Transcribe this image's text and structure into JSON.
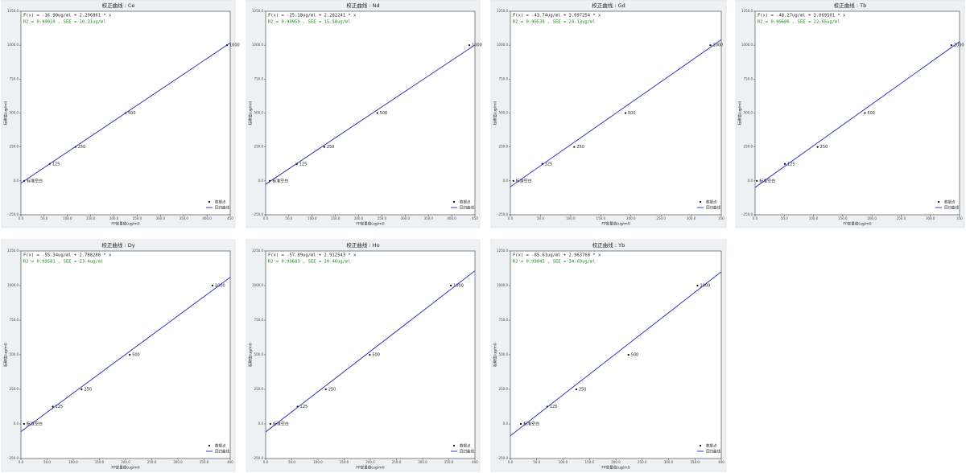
{
  "chart_data": [
    {
      "type": "scatter",
      "title": "校正曲线 : Ce",
      "equation": "F(x) = -16.90ug/ml + 2.296861 * x",
      "stats": "R2 = 0.99910 , SEE = 10.31ug/ml",
      "x_label": "FP定量值(ug/ml)",
      "y_label": "标称值(ug/ml)",
      "xlim": [
        0,
        450
      ],
      "ylim": [
        -250,
        1250
      ],
      "xticks": [
        {
          "value": 0,
          "label": "0.0"
        },
        {
          "value": 50,
          "label": "50.0"
        },
        {
          "value": 100,
          "label": "100.0"
        },
        {
          "value": 150,
          "label": "150.0"
        },
        {
          "value": 200,
          "label": "200.0"
        },
        {
          "value": 250,
          "label": "250.0"
        },
        {
          "value": 300,
          "label": "300.0"
        },
        {
          "value": 350,
          "label": "350.0"
        },
        {
          "value": 400,
          "label": "400.0"
        },
        {
          "value": 450,
          "label": "450"
        }
      ],
      "yticks": [
        {
          "value": -250,
          "label": "-250.0"
        },
        {
          "value": 0,
          "label": "0.0"
        },
        {
          "value": 250,
          "label": "250.0"
        },
        {
          "value": 500,
          "label": "500.0"
        },
        {
          "value": 750,
          "label": "750.0"
        },
        {
          "value": 1000,
          "label": "1000.0"
        },
        {
          "value": 1250,
          "label": "1250.0"
        }
      ],
      "series": [
        {
          "name": "数据点",
          "color": "#000000",
          "x": [
            7,
            62,
            117,
            225,
            443
          ],
          "values": [
            0,
            125,
            250,
            500,
            1000
          ],
          "labels": [
            "标准空白",
            "125",
            "250",
            "500",
            "1000"
          ]
        },
        {
          "name": "回归曲线",
          "color": "#2222b8",
          "x": [
            0,
            450
          ],
          "values": [
            -16.9,
            1016.7
          ]
        }
      ]
    },
    {
      "type": "scatter",
      "title": "校正曲线 : Nd",
      "equation": "F(x) = -25.18ug/ml + 2.282241 * x",
      "stats": "R2 = 0.99959 , SEE = 15.58ug/ml",
      "x_label": "FP定量值(ug/ml)",
      "y_label": "标称值(ug/ml)",
      "xlim": [
        0,
        450
      ],
      "ylim": [
        -250,
        1250
      ],
      "xticks": [
        {
          "value": 0,
          "label": "0.0"
        },
        {
          "value": 50,
          "label": "50.0"
        },
        {
          "value": 100,
          "label": "100.0"
        },
        {
          "value": 150,
          "label": "150.0"
        },
        {
          "value": 200,
          "label": "200.0"
        },
        {
          "value": 250,
          "label": "250.0"
        },
        {
          "value": 300,
          "label": "300.0"
        },
        {
          "value": 350,
          "label": "350.0"
        },
        {
          "value": 400,
          "label": "400.0"
        },
        {
          "value": 450,
          "label": "450"
        }
      ],
      "yticks": [
        {
          "value": -250,
          "label": "-250.0"
        },
        {
          "value": 0,
          "label": "0.0"
        },
        {
          "value": 250,
          "label": "250.0"
        },
        {
          "value": 500,
          "label": "500.0"
        },
        {
          "value": 750,
          "label": "750.0"
        },
        {
          "value": 1000,
          "label": "1000.0"
        },
        {
          "value": 1250,
          "label": "1250.0"
        }
      ],
      "series": [
        {
          "name": "数据点",
          "color": "#000000",
          "x": [
            9,
            67,
            126,
            240,
            438
          ],
          "values": [
            0,
            125,
            250,
            500,
            1000
          ],
          "labels": [
            "标准空白",
            "125",
            "250",
            "500",
            "1000"
          ]
        },
        {
          "name": "回归曲线",
          "color": "#2222b8",
          "x": [
            0,
            450
          ],
          "values": [
            -25.18,
            1001.8
          ]
        }
      ]
    },
    {
      "type": "scatter",
      "title": "校正曲线 : Gd",
      "equation": "F(x) = -43.74ug/ml + 3.097254 * x",
      "stats": "R2 = 0.99538 , SEE = 24.13ug/ml",
      "x_label": "FP定量值(ug/ml)",
      "y_label": "标称值(ug/ml)",
      "xlim": [
        0,
        350
      ],
      "ylim": [
        -250,
        1250
      ],
      "xticks": [
        {
          "value": 0,
          "label": "0.0"
        },
        {
          "value": 50,
          "label": "50.0"
        },
        {
          "value": 100,
          "label": "100.0"
        },
        {
          "value": 150,
          "label": "150.0"
        },
        {
          "value": 200,
          "label": "200.0"
        },
        {
          "value": 250,
          "label": "250.0"
        },
        {
          "value": 300,
          "label": "300.0"
        },
        {
          "value": 350,
          "label": "350"
        }
      ],
      "yticks": [
        {
          "value": -250,
          "label": "-250.0"
        },
        {
          "value": 0,
          "label": "0.0"
        },
        {
          "value": 250,
          "label": "250.0"
        },
        {
          "value": 500,
          "label": "500.0"
        },
        {
          "value": 750,
          "label": "750.0"
        },
        {
          "value": 1000,
          "label": "1000.0"
        },
        {
          "value": 1250,
          "label": "1250.0"
        }
      ],
      "series": [
        {
          "name": "数据点",
          "color": "#000000",
          "x": [
            5,
            53,
            106,
            191,
            332
          ],
          "values": [
            0,
            125,
            250,
            500,
            1000
          ],
          "labels": [
            "标准空白",
            "125",
            "250",
            "500",
            "1000"
          ]
        },
        {
          "name": "回归曲线",
          "color": "#2222b8",
          "x": [
            0,
            350
          ],
          "values": [
            -43.74,
            1040.3
          ]
        }
      ]
    },
    {
      "type": "scatter",
      "title": "校正曲线 : Tb",
      "equation": "F(x) = -48.27ug/ml + 3.069501 * x",
      "stats": "R2 = 0.99606 , SEE = 22.65ug/ml",
      "x_label": "FP定量值(ug/ml)",
      "y_label": "标称值(ug/ml)",
      "xlim": [
        0,
        350
      ],
      "ylim": [
        -250,
        1250
      ],
      "xticks": [
        {
          "value": 0,
          "label": "0.0"
        },
        {
          "value": 50,
          "label": "50.0"
        },
        {
          "value": 100,
          "label": "100.0"
        },
        {
          "value": 150,
          "label": "150.0"
        },
        {
          "value": 200,
          "label": "200.0"
        },
        {
          "value": 250,
          "label": "250.0"
        },
        {
          "value": 300,
          "label": "300.0"
        },
        {
          "value": 350,
          "label": "350"
        }
      ],
      "yticks": [
        {
          "value": -250,
          "label": "-250.0"
        },
        {
          "value": 0,
          "label": "0.0"
        },
        {
          "value": 250,
          "label": "250.0"
        },
        {
          "value": 500,
          "label": "500.0"
        },
        {
          "value": 750,
          "label": "750.0"
        },
        {
          "value": 1000,
          "label": "1000.0"
        },
        {
          "value": 1250,
          "label": "1250.0"
        }
      ],
      "series": [
        {
          "name": "数据点",
          "color": "#000000",
          "x": [
            3,
            51,
            107,
            188,
            336
          ],
          "values": [
            0,
            125,
            250,
            500,
            1000
          ],
          "labels": [
            "标准空白",
            "125",
            "250",
            "500",
            "1000"
          ]
        },
        {
          "name": "回归曲线",
          "color": "#2222b8",
          "x": [
            0,
            350
          ],
          "values": [
            -48.27,
            1026.1
          ]
        }
      ]
    },
    {
      "type": "scatter",
      "title": "校正曲线 : Dy",
      "equation": "F(x) = -55.34ug/ml + 2.788288 * x",
      "stats": "R2 = 0.99581 , SEE = 23.4ug/ml",
      "x_label": "FP定量值(ug/ml)",
      "y_label": "标称值(ug/ml)",
      "xlim": [
        0,
        400
      ],
      "ylim": [
        -250,
        1250
      ],
      "xticks": [
        {
          "value": 0,
          "label": "0.0"
        },
        {
          "value": 50,
          "label": "50.0"
        },
        {
          "value": 100,
          "label": "100.0"
        },
        {
          "value": 150,
          "label": "150.0"
        },
        {
          "value": 200,
          "label": "200.0"
        },
        {
          "value": 250,
          "label": "250.0"
        },
        {
          "value": 300,
          "label": "300.0"
        },
        {
          "value": 350,
          "label": "350.0"
        },
        {
          "value": 400,
          "label": "400"
        }
      ],
      "yticks": [
        {
          "value": -250,
          "label": "-250.0"
        },
        {
          "value": 0,
          "label": "0.0"
        },
        {
          "value": 250,
          "label": "250.0"
        },
        {
          "value": 500,
          "label": "500.0"
        },
        {
          "value": 750,
          "label": "750.0"
        },
        {
          "value": 1000,
          "label": "1000.0"
        },
        {
          "value": 1250,
          "label": "1250.0"
        }
      ],
      "series": [
        {
          "name": "数据点",
          "color": "#000000",
          "x": [
            6,
            61,
            116,
            208,
            366
          ],
          "values": [
            0,
            125,
            250,
            500,
            1000
          ],
          "labels": [
            "标准空白",
            "125",
            "250",
            "500",
            "1000"
          ]
        },
        {
          "name": "回归曲线",
          "color": "#2222b8",
          "x": [
            0,
            400
          ],
          "values": [
            -55.34,
            1060.0
          ]
        }
      ]
    },
    {
      "type": "scatter",
      "title": "校正曲线 : Ho",
      "equation": "F(x) = -57.89ug/ml + 2.912543 * x",
      "stats": "R2 = 0.99683 , SEE = 20.46ug/ml",
      "x_label": "FP定量值(ug/ml)",
      "y_label": "标称值(ug/ml)",
      "xlim": [
        0,
        400
      ],
      "ylim": [
        -250,
        1250
      ],
      "xticks": [
        {
          "value": 0,
          "label": "0.0"
        },
        {
          "value": 50,
          "label": "50.0"
        },
        {
          "value": 100,
          "label": "100.0"
        },
        {
          "value": 150,
          "label": "150.0"
        },
        {
          "value": 200,
          "label": "200.0"
        },
        {
          "value": 250,
          "label": "250.0"
        },
        {
          "value": 300,
          "label": "300.0"
        },
        {
          "value": 350,
          "label": "350.0"
        },
        {
          "value": 400,
          "label": "400"
        }
      ],
      "yticks": [
        {
          "value": -250,
          "label": "-250.0"
        },
        {
          "value": 0,
          "label": "0.0"
        },
        {
          "value": 250,
          "label": "250.0"
        },
        {
          "value": 500,
          "label": "500.0"
        },
        {
          "value": 750,
          "label": "750.0"
        },
        {
          "value": 1000,
          "label": "1000.0"
        },
        {
          "value": 1250,
          "label": "1250.0"
        }
      ],
      "series": [
        {
          "name": "数据点",
          "color": "#000000",
          "x": [
            9,
            61,
            115,
            199,
            354
          ],
          "values": [
            0,
            125,
            250,
            500,
            1000
          ],
          "labels": [
            "标准空白",
            "125",
            "250",
            "500",
            "1000"
          ]
        },
        {
          "name": "回归曲线",
          "color": "#2222b8",
          "x": [
            0,
            400
          ],
          "values": [
            -57.89,
            1107.1
          ]
        }
      ]
    },
    {
      "type": "scatter",
      "title": "校正曲线 : Yb",
      "equation": "F(x) = -85.61ug/ml + 2.963768 * x",
      "stats": "R2 = 0.99045 , SEE = 34.69ug/ml",
      "x_label": "FP定量值(ug/ml)",
      "y_label": "标称值(ug/ml)",
      "xlim": [
        0,
        400
      ],
      "ylim": [
        -250,
        1250
      ],
      "xticks": [
        {
          "value": 0,
          "label": "0.0"
        },
        {
          "value": 50,
          "label": "50.0"
        },
        {
          "value": 100,
          "label": "100.0"
        },
        {
          "value": 150,
          "label": "150.0"
        },
        {
          "value": 200,
          "label": "200.0"
        },
        {
          "value": 250,
          "label": "250.0"
        },
        {
          "value": 300,
          "label": "300.0"
        },
        {
          "value": 350,
          "label": "350.0"
        },
        {
          "value": 400,
          "label": "400"
        }
      ],
      "yticks": [
        {
          "value": -250,
          "label": "-250.0"
        },
        {
          "value": 0,
          "label": "0.0"
        },
        {
          "value": 250,
          "label": "250.0"
        },
        {
          "value": 500,
          "label": "500.0"
        },
        {
          "value": 750,
          "label": "750.0"
        },
        {
          "value": 1000,
          "label": "1000.0"
        },
        {
          "value": 1250,
          "label": "1250.0"
        }
      ],
      "series": [
        {
          "name": "数据点",
          "color": "#000000",
          "x": [
            20,
            70,
            125,
            224,
            355
          ],
          "values": [
            0,
            125,
            250,
            500,
            1000
          ],
          "labels": [
            "标准空白",
            "125",
            "250",
            "500",
            "1000"
          ]
        },
        {
          "name": "回归曲线",
          "color": "#2222b8",
          "x": [
            0,
            400
          ],
          "values": [
            -85.61,
            1099.9
          ]
        }
      ]
    }
  ]
}
